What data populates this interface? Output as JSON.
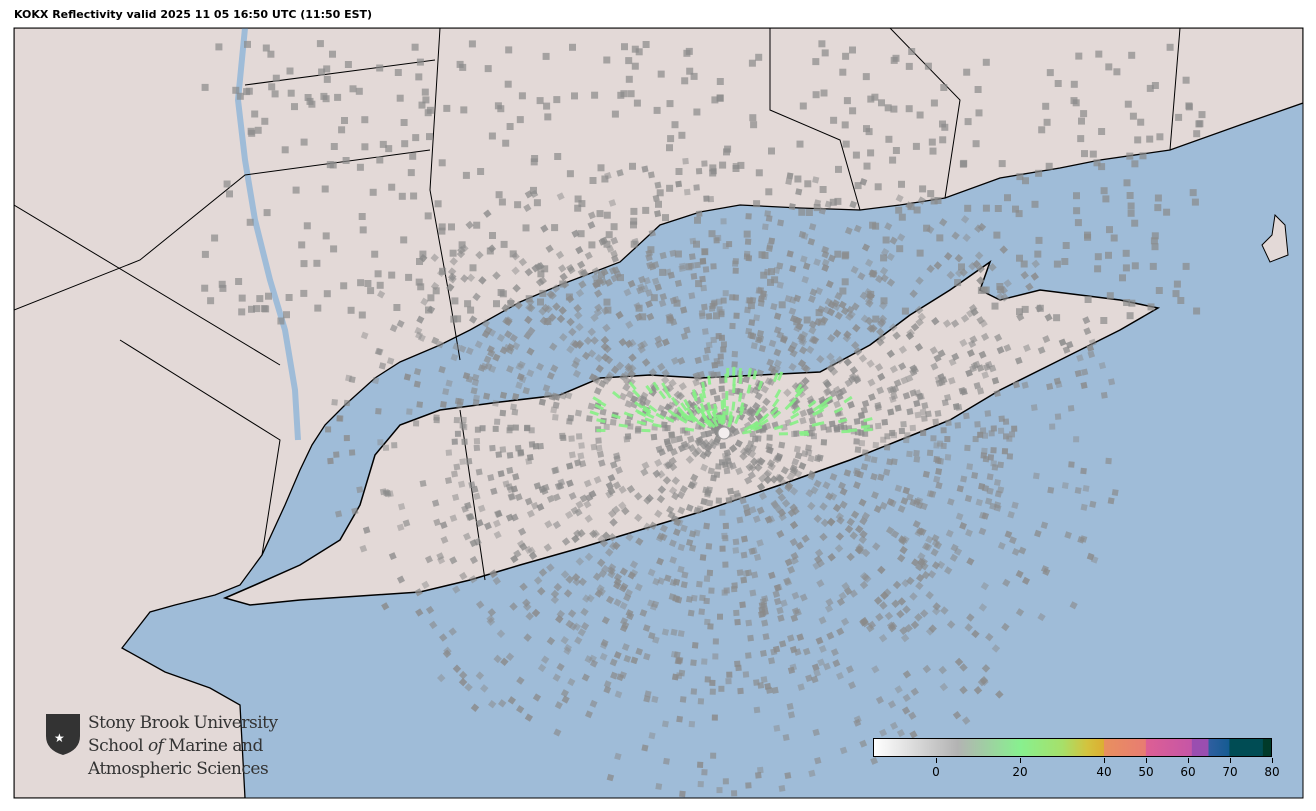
{
  "title": "KOKX Reflectivity valid 2025 11 05 16:50 UTC (11:50 EST)",
  "radar_site": "KOKX",
  "product": "Reflectivity",
  "colors": {
    "water": "#9fbcd8",
    "land": "#e3d9d7",
    "echo_gray": "#8a8a8a",
    "echo_green": "#86ef86"
  },
  "colorbar": {
    "min": -15,
    "max": 80,
    "ticks": [
      0,
      20,
      40,
      50,
      60,
      70,
      80
    ],
    "tick_labels": [
      "0",
      "20",
      "40",
      "50",
      "60",
      "70",
      "80"
    ],
    "stops": [
      {
        "value": -15,
        "color": "#ffffff"
      },
      {
        "value": 5,
        "color": "#b3b3b3"
      },
      {
        "value": 20,
        "color": "#88f08f"
      },
      {
        "value": 30,
        "color": "#a6e06a"
      },
      {
        "value": 36,
        "color": "#d3c33e"
      },
      {
        "value": 40,
        "color": "#dcae32"
      },
      {
        "value": 40.1,
        "color": "#e8905f"
      },
      {
        "value": 50,
        "color": "#e87c72"
      },
      {
        "value": 50.1,
        "color": "#dd5f94"
      },
      {
        "value": 61,
        "color": "#c656a6"
      },
      {
        "value": 61.1,
        "color": "#9a4eb0"
      },
      {
        "value": 65,
        "color": "#9a4eb0"
      },
      {
        "value": 65.1,
        "color": "#2f5fa0"
      },
      {
        "value": 70,
        "color": "#155b92"
      },
      {
        "value": 70.1,
        "color": "#004c54"
      },
      {
        "value": 78,
        "color": "#004c54"
      },
      {
        "value": 78.1,
        "color": "#003a2a"
      },
      {
        "value": 80,
        "color": "#003a2a"
      }
    ]
  },
  "logo": {
    "line1": "Stony Brook University",
    "line2_a": "School ",
    "line2_b": "of",
    "line2_c": " Marine and",
    "line3": "Atmospheric Sciences"
  }
}
